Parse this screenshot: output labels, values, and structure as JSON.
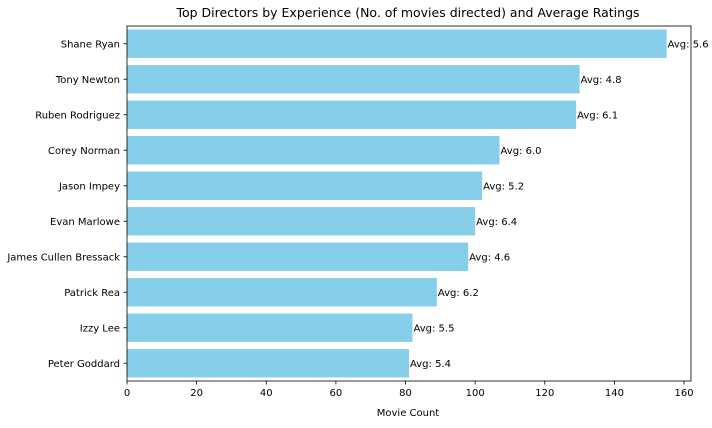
{
  "chart_data": {
    "type": "bar",
    "orientation": "horizontal",
    "title": "Top Directors by Experience (No. of movies directed) and Average Ratings",
    "xlabel": "Movie Count",
    "ylabel": "",
    "xlim": [
      0,
      162
    ],
    "x_ticks": [
      0,
      20,
      40,
      60,
      80,
      100,
      120,
      140,
      160
    ],
    "grid": false,
    "bar_color": "#87CEEB",
    "categories": [
      "Shane Ryan",
      "Tony Newton",
      "Ruben Rodriguez",
      "Corey Norman",
      "Jason Impey",
      "Evan Marlowe",
      "James Cullen Bressack",
      "Patrick Rea",
      "Izzy Lee",
      "Peter Goddard"
    ],
    "values": [
      155,
      130,
      129,
      107,
      102,
      100,
      98,
      89,
      82,
      81
    ],
    "data_labels": [
      "Avg: 5.6",
      "Avg: 4.8",
      "Avg: 6.1",
      "Avg: 6.0",
      "Avg: 5.2",
      "Avg: 6.4",
      "Avg: 4.6",
      "Avg: 6.2",
      "Avg: 5.5",
      "Avg: 5.4"
    ]
  }
}
